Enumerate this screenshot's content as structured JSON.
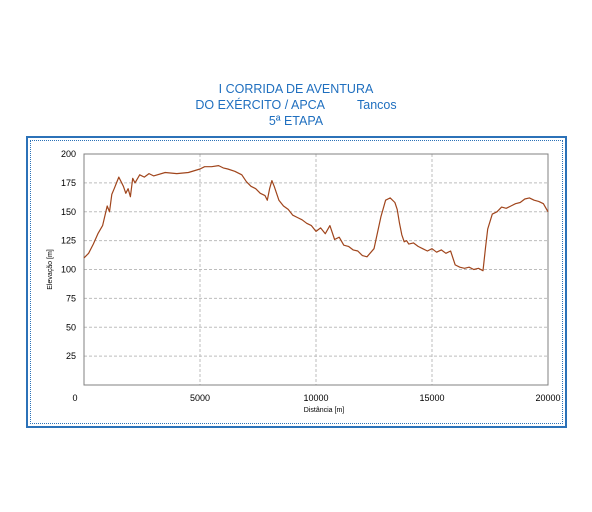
{
  "header": {
    "line1": "I CORRIDA DE AVENTURA",
    "line2": "DO EXÉRCITO / APCA",
    "location": "Tancos",
    "line3": "5ª ETAPA"
  },
  "colors": {
    "title": "#1f6fbf",
    "frame": "#2c72b8",
    "line": "#a0451c",
    "grid": "#bdbdbd"
  },
  "chart_data": {
    "type": "line",
    "xlabel": "Distância [m]",
    "ylabel": "Elevação [m]",
    "xlim": [
      0,
      20000
    ],
    "ylim": [
      0,
      200
    ],
    "xticks": [
      0,
      5000,
      10000,
      15000,
      20000
    ],
    "yticks": [
      25,
      50,
      75,
      100,
      125,
      150,
      175,
      200
    ],
    "grid": true,
    "series": [
      {
        "x": [
          0,
          200,
          400,
          600,
          800,
          1000,
          1100,
          1200,
          1300,
          1400,
          1500,
          1600,
          1700,
          1800,
          1900,
          2000,
          2100,
          2200,
          2400,
          2600,
          2800,
          3000,
          3500,
          4000,
          4500,
          5000,
          5200,
          5500,
          5800,
          6000,
          6200,
          6500,
          6800,
          7000,
          7200,
          7400,
          7600,
          7800,
          7900,
          8000,
          8100,
          8200,
          8400,
          8600,
          8800,
          9000,
          9200,
          9400,
          9600,
          9800,
          10000,
          10200,
          10400,
          10600,
          10800,
          11000,
          11200,
          11400,
          11600,
          11800,
          12000,
          12200,
          12500,
          12800,
          13000,
          13200,
          13400,
          13500,
          13600,
          13700,
          13800,
          13900,
          14000,
          14200,
          14400,
          14600,
          14800,
          15000,
          15200,
          15400,
          15600,
          15800,
          16000,
          16200,
          16400,
          16600,
          16800,
          17000,
          17200,
          17300,
          17400,
          17600,
          17800,
          18000,
          18200,
          18400,
          18600,
          18800,
          19000,
          19200,
          19400,
          19600,
          19800,
          20000
        ],
        "y": [
          110,
          114,
          122,
          131,
          138,
          155,
          150,
          165,
          170,
          175,
          180,
          176,
          172,
          166,
          170,
          163,
          179,
          175,
          182,
          180,
          183,
          181,
          184,
          183,
          184,
          187,
          189,
          189,
          190,
          188,
          187,
          185,
          182,
          176,
          172,
          170,
          166,
          164,
          160,
          170,
          177,
          172,
          160,
          155,
          152,
          147,
          145,
          143,
          140,
          138,
          133,
          136,
          131,
          138,
          126,
          128,
          121,
          120,
          117,
          116,
          112,
          111,
          118,
          146,
          160,
          162,
          158,
          152,
          140,
          130,
          124,
          125,
          122,
          123,
          120,
          118,
          116,
          118,
          115,
          117,
          114,
          116,
          104,
          102,
          101,
          102,
          100,
          101,
          99,
          118,
          135,
          148,
          150,
          154,
          153,
          155,
          157,
          158,
          161,
          162,
          160,
          159,
          157,
          150
        ]
      }
    ]
  }
}
